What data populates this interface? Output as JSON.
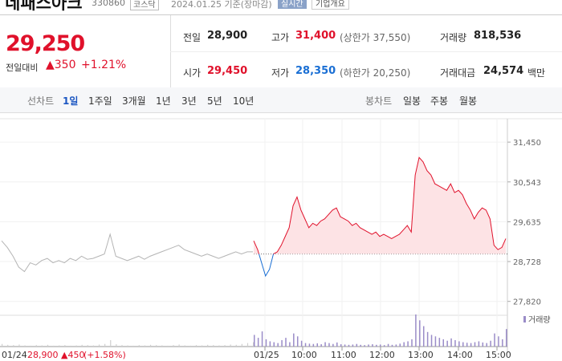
{
  "header": {
    "name": "네패스아크",
    "code": "330860",
    "market": "코스닥",
    "date": "2024.01.25 기준(장마감)",
    "realtime": "실시간",
    "company": "기업개요"
  },
  "summary": {
    "price": "29,250",
    "change_label": "전일대비",
    "change": "▲350",
    "rate": "+1.21%",
    "rows": [
      [
        {
          "label": "전일",
          "value": "28,900"
        },
        {
          "label": "고가",
          "value": "31,400",
          "note": "(상한가 37,550)"
        },
        {
          "label": "거래량",
          "value": "818,536"
        }
      ],
      [
        {
          "label": "시가",
          "value": "29,450"
        },
        {
          "label": "저가",
          "value": "28,350",
          "note": "(하한가 20,250)"
        },
        {
          "label": "거래대금",
          "value": "24,574",
          "unit": "백만"
        }
      ]
    ]
  },
  "tabs": {
    "line_label": "선차트",
    "line": [
      "1일",
      "1주일",
      "3개월",
      "1년",
      "3년",
      "5년",
      "10년"
    ],
    "active": 0,
    "candle_label": "봉차트",
    "candle": [
      "일봉",
      "주봉",
      "월봉"
    ]
  },
  "chart_data": {
    "type": "line",
    "series": [
      {
        "color": "#b4b4b4",
        "values": [
          29200,
          29050,
          28850,
          28600,
          28500,
          28700,
          28650,
          28750,
          28800,
          28700,
          28750,
          28700,
          28800,
          28750,
          28850,
          28780,
          28800,
          28850,
          28900,
          29350,
          28850,
          28800,
          28750,
          28800,
          28850,
          28780,
          28850,
          28900,
          28950,
          29000,
          29050,
          29100,
          29000,
          28950,
          28900,
          28850,
          28900,
          28850,
          28800,
          28850,
          28900,
          28950,
          28900,
          28950,
          28950
        ]
      },
      {
        "color": "#e0112b",
        "down_color": "#1a6fd4",
        "fill": "#fde3e5",
        "values": [
          29200,
          29000,
          28700,
          28400,
          28550,
          28900,
          28950,
          29100,
          29300,
          29500,
          30000,
          30200,
          29900,
          29700,
          29500,
          29600,
          29550,
          29650,
          29700,
          29800,
          29900,
          29950,
          29750,
          29700,
          29650,
          29550,
          29600,
          29500,
          29450,
          29400,
          29350,
          29400,
          29300,
          29350,
          29300,
          29250,
          29300,
          29350,
          29450,
          29550,
          29400,
          30700,
          31100,
          31000,
          30800,
          30700,
          30500,
          30450,
          30400,
          30350,
          30500,
          30300,
          30350,
          30250,
          30050,
          29900,
          29700,
          29850,
          29950,
          29900,
          29700,
          29100,
          29000,
          29050,
          29250
        ]
      }
    ],
    "baseline": 28900,
    "volume": {
      "name": "거래량",
      "color": "#9a8cc8",
      "prev": [
        900,
        600,
        500,
        700,
        400,
        300,
        500,
        400,
        600,
        300,
        400,
        500,
        300,
        400,
        600,
        500,
        400,
        700,
        900,
        2200,
        800,
        500,
        400,
        300,
        500,
        400,
        600,
        500,
        400,
        300,
        500,
        700,
        400,
        300,
        500,
        400,
        600,
        500,
        400,
        500,
        700,
        600,
        900,
        1200,
        1500
      ],
      "today": [
        4000,
        3000,
        5200,
        2500,
        1800,
        1500,
        1200,
        2200,
        3000,
        1500,
        4500,
        3500,
        2000,
        1200,
        1000,
        900,
        1100,
        800,
        1500,
        1200,
        900,
        1400,
        800,
        700,
        600,
        700,
        900,
        600,
        500,
        700,
        800,
        600,
        700,
        500,
        900,
        600,
        700,
        1000,
        1500,
        1800,
        2500,
        11000,
        9000,
        7000,
        5000,
        4000,
        3500,
        3000,
        2500,
        2000,
        2800,
        2200,
        1800,
        1500,
        1300,
        1200,
        1500,
        1800,
        1400,
        1200,
        2000,
        4500,
        3500,
        2500,
        6000
      ]
    },
    "ylim": [
      27650,
      31800
    ],
    "yticks": [
      {
        "value": 31450,
        "label": "31,450"
      },
      {
        "value": 30543,
        "label": "30,543"
      },
      {
        "value": 29635,
        "label": "29,635"
      },
      {
        "value": 28728,
        "label": "28,728"
      },
      {
        "value": 27820,
        "label": "27,820"
      }
    ],
    "xlabels": [
      "01/25",
      "10:00",
      "11:00",
      "12:00",
      "13:00",
      "14:00",
      "15:00"
    ],
    "grid": true
  },
  "footer": {
    "date": "01/24",
    "price": "28,900",
    "change": "▲450",
    "rate": "(+1.58%)"
  }
}
